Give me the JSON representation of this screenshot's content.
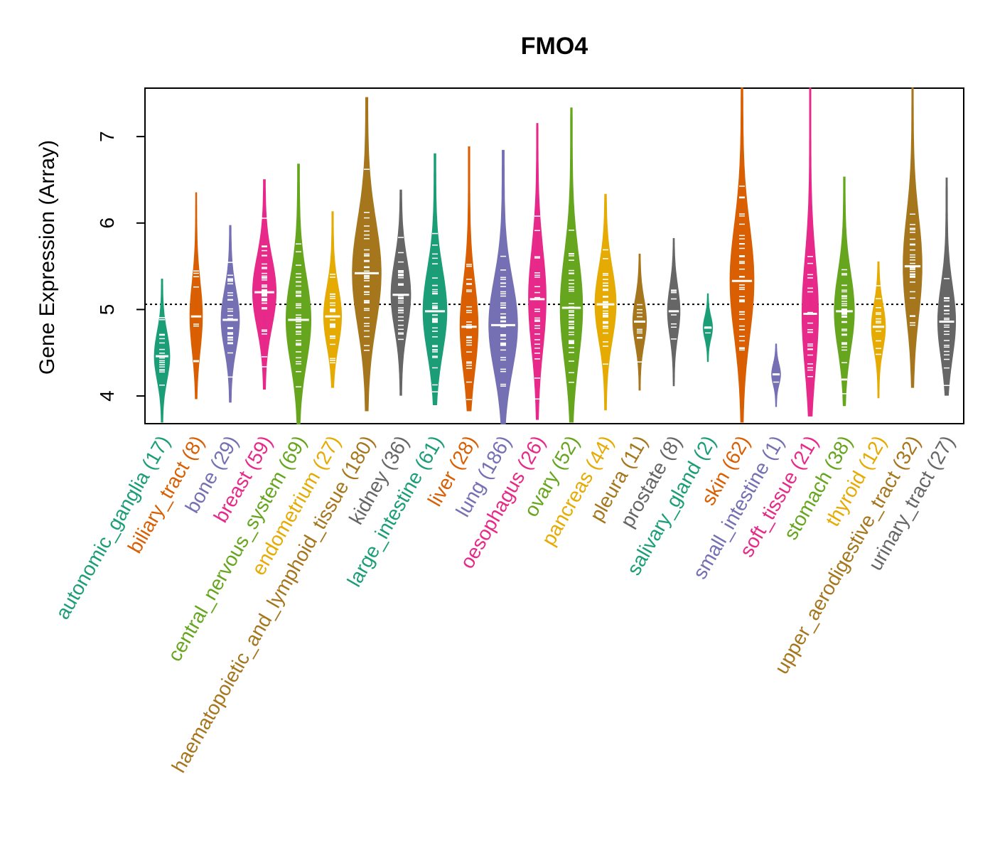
{
  "chart_data": {
    "type": "violin",
    "title": "FMO4",
    "xlabel": "",
    "ylabel": "Gene Expression (Array)",
    "ylim": [
      3.68,
      7.56
    ],
    "yticks": [
      4,
      5,
      6,
      7
    ],
    "reference_line": 5.06,
    "categories": [
      {
        "label": "autonomic_ganglia (17)",
        "color": "#1B9E77",
        "min": 3.7,
        "max": 5.35,
        "median": 4.46
      },
      {
        "label": "biliary_tract (8)",
        "color": "#D95F02",
        "min": 3.97,
        "max": 6.35,
        "median": 4.92
      },
      {
        "label": "bone (29)",
        "color": "#7570B3",
        "min": 3.93,
        "max": 5.97,
        "median": 4.88
      },
      {
        "label": "breast (59)",
        "color": "#E7298A",
        "min": 4.08,
        "max": 6.5,
        "median": 5.2
      },
      {
        "label": "central_nervous_system (69)",
        "color": "#66A61E",
        "min": 3.68,
        "max": 6.68,
        "median": 4.88
      },
      {
        "label": "endometrium (27)",
        "color": "#E6AB02",
        "min": 4.1,
        "max": 6.13,
        "median": 4.92
      },
      {
        "label": "haematopoietic_and_lymphoid_tissue (180)",
        "color": "#A6761D",
        "min": 3.83,
        "max": 7.45,
        "median": 5.42
      },
      {
        "label": "kidney (36)",
        "color": "#666666",
        "min": 4.01,
        "max": 6.38,
        "median": 5.17
      },
      {
        "label": "large_intestine (61)",
        "color": "#1B9E77",
        "min": 3.9,
        "max": 6.8,
        "median": 4.98
      },
      {
        "label": "liver (28)",
        "color": "#D95F02",
        "min": 3.83,
        "max": 6.88,
        "median": 4.8
      },
      {
        "label": "lung (186)",
        "color": "#7570B3",
        "min": 3.68,
        "max": 6.84,
        "median": 4.82
      },
      {
        "label": "oesophagus (26)",
        "color": "#E7298A",
        "min": 3.73,
        "max": 7.15,
        "median": 5.12
      },
      {
        "label": "ovary (52)",
        "color": "#66A61E",
        "min": 3.7,
        "max": 7.33,
        "median": 5.02
      },
      {
        "label": "pancreas (44)",
        "color": "#E6AB02",
        "min": 3.84,
        "max": 6.33,
        "median": 5.06
      },
      {
        "label": "pleura (11)",
        "color": "#A6761D",
        "min": 4.07,
        "max": 5.64,
        "median": 4.86
      },
      {
        "label": "prostate (8)",
        "color": "#666666",
        "min": 4.12,
        "max": 5.82,
        "median": 4.98
      },
      {
        "label": "salivary_gland (2)",
        "color": "#1B9E77",
        "min": 4.4,
        "max": 5.18,
        "median": 4.79
      },
      {
        "label": "skin (62)",
        "color": "#D95F02",
        "min": 3.7,
        "max": 7.56,
        "median": 5.33
      },
      {
        "label": "small_intestine (1)",
        "color": "#7570B3",
        "min": 3.88,
        "max": 4.6,
        "median": 4.25
      },
      {
        "label": "soft_tissue (21)",
        "color": "#E7298A",
        "min": 3.77,
        "max": 7.56,
        "median": 4.95
      },
      {
        "label": "stomach (38)",
        "color": "#66A61E",
        "min": 3.89,
        "max": 6.53,
        "median": 4.98
      },
      {
        "label": "thyroid (12)",
        "color": "#E6AB02",
        "min": 3.98,
        "max": 5.55,
        "median": 4.8
      },
      {
        "label": "upper_aerodigestive_tract (32)",
        "color": "#A6761D",
        "min": 4.1,
        "max": 7.56,
        "median": 5.5
      },
      {
        "label": "urinary_tract (27)",
        "color": "#666666",
        "min": 4.01,
        "max": 6.52,
        "median": 4.86
      }
    ]
  }
}
